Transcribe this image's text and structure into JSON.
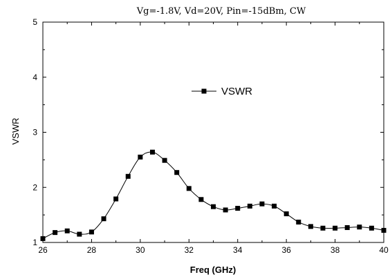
{
  "chart_data": {
    "type": "line",
    "title": "Vg=-1.8V, Vd=20V, Pin=-15dBm, CW",
    "xlabel": "Freq (GHz)",
    "ylabel": "VSWR",
    "xlim": [
      26,
      40
    ],
    "ylim": [
      1,
      5
    ],
    "x_ticks": [
      26,
      28,
      30,
      32,
      34,
      36,
      38,
      40
    ],
    "y_ticks": [
      1,
      2,
      3,
      4,
      5
    ],
    "grid": false,
    "legend_position": "center",
    "series": [
      {
        "name": "VSWR",
        "marker": "square",
        "color": "#000000",
        "x": [
          26,
          26.5,
          27,
          27.5,
          28,
          28.5,
          29,
          29.5,
          30,
          30.5,
          31,
          31.5,
          32,
          32.5,
          33,
          33.5,
          34,
          34.5,
          35,
          35.5,
          36,
          36.5,
          37,
          37.5,
          38,
          38.5,
          39,
          39.5,
          40
        ],
        "y": [
          1.07,
          1.18,
          1.21,
          1.15,
          1.19,
          1.43,
          1.79,
          2.2,
          2.55,
          2.64,
          2.49,
          2.27,
          1.98,
          1.78,
          1.65,
          1.59,
          1.62,
          1.66,
          1.7,
          1.66,
          1.52,
          1.37,
          1.29,
          1.26,
          1.26,
          1.27,
          1.28,
          1.26,
          1.22
        ]
      }
    ]
  }
}
